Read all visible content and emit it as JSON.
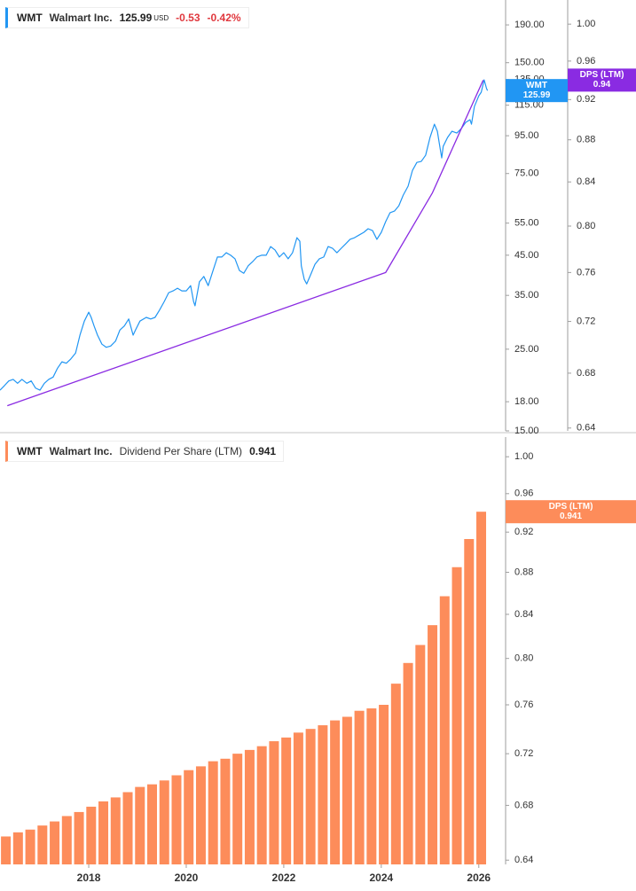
{
  "chart_data": [
    {
      "type": "line",
      "legend": {
        "symbol": "WMT",
        "name": "Walmart Inc.",
        "currency": "USD",
        "change": "-0.53",
        "change_percent": "-0.42%"
      },
      "x": [
        2016.18,
        2016.27,
        2016.36,
        2016.45,
        2016.54,
        2016.63,
        2016.73,
        2016.82,
        2016.91,
        2017.0,
        2017.09,
        2017.18,
        2017.27,
        2017.36,
        2017.45,
        2017.54,
        2017.63,
        2017.73,
        2017.82,
        2017.91,
        2018.0,
        2018.05,
        2018.11,
        2018.18,
        2018.27,
        2018.36,
        2018.45,
        2018.55,
        2018.64,
        2018.73,
        2018.82,
        2018.91,
        2018.96,
        2019.05,
        2019.18,
        2019.27,
        2019.36,
        2019.45,
        2019.55,
        2019.64,
        2019.73,
        2019.82,
        2019.91,
        2020.0,
        2020.09,
        2020.15,
        2020.18,
        2020.27,
        2020.36,
        2020.45,
        2020.55,
        2020.64,
        2020.73,
        2020.82,
        2020.91,
        2021.0,
        2021.09,
        2021.18,
        2021.27,
        2021.36,
        2021.45,
        2021.55,
        2021.64,
        2021.73,
        2021.82,
        2021.91,
        2022.0,
        2022.09,
        2022.18,
        2022.27,
        2022.33,
        2022.36,
        2022.42,
        2022.47,
        2022.55,
        2022.64,
        2022.73,
        2022.82,
        2022.91,
        2023.0,
        2023.09,
        2023.18,
        2023.27,
        2023.36,
        2023.45,
        2023.55,
        2023.64,
        2023.73,
        2023.82,
        2023.91,
        2024.0,
        2024.09,
        2024.18,
        2024.27,
        2024.36,
        2024.45,
        2024.55,
        2024.64,
        2024.73,
        2024.82,
        2024.91,
        2025.0,
        2025.09,
        2025.15,
        2025.2,
        2025.24,
        2025.27,
        2025.36,
        2025.45,
        2025.55,
        2025.64,
        2025.73,
        2025.82,
        2025.85,
        2025.91,
        2026.0,
        2026.05,
        2026.11,
        2026.16,
        2026.18
      ],
      "series": [
        {
          "name": "WMT",
          "color": "#2196f3",
          "values": [
            19.35,
            19.9,
            20.5,
            20.7,
            20.2,
            20.7,
            20.2,
            20.5,
            19.6,
            19.35,
            20.2,
            20.7,
            21.0,
            22.2,
            23.1,
            22.9,
            23.5,
            24.4,
            27.3,
            29.8,
            31.5,
            30.5,
            28.9,
            27.3,
            25.8,
            25.3,
            25.5,
            26.3,
            28.2,
            28.9,
            30.2,
            27.3,
            28.2,
            29.8,
            30.5,
            30.2,
            30.5,
            31.9,
            33.7,
            35.6,
            36.0,
            36.6,
            36.0,
            36.0,
            37.2,
            33.7,
            32.8,
            38.1,
            39.4,
            37.2,
            40.9,
            44.5,
            44.5,
            45.7,
            45.0,
            44.0,
            40.9,
            40.2,
            42.1,
            43.2,
            44.5,
            45.0,
            45.0,
            47.5,
            46.5,
            44.5,
            45.7,
            44.0,
            45.7,
            50.2,
            49.1,
            42.1,
            38.7,
            37.6,
            39.8,
            42.5,
            44.0,
            44.5,
            47.5,
            47.0,
            45.7,
            47.0,
            48.3,
            49.7,
            50.2,
            51.1,
            51.9,
            53.1,
            52.5,
            49.7,
            51.9,
            55.5,
            58.7,
            59.3,
            61.3,
            65.5,
            69.3,
            76.5,
            80.4,
            80.9,
            84.1,
            94.0,
            102.1,
            97.7,
            88.9,
            82.7,
            88.9,
            94.0,
            97.7,
            96.6,
            99.3,
            103.2,
            105.0,
            102.1,
            114.1,
            121.9,
            124.7,
            134.7,
            127.5,
            125.99
          ]
        },
        {
          "name": "DPS (LTM)",
          "color": "#8a2be2",
          "axis": "y2",
          "x": [
            2016.33,
            2024.09,
            2025.05,
            2026.09
          ],
          "values": [
            0.656,
            0.76,
            0.83,
            0.94
          ]
        }
      ],
      "xlim": [
        2016.18,
        2026.55
      ],
      "ylim": [
        15,
        222
      ],
      "ylog": true,
      "yticks": [
        {
          "value": 15,
          "label": "15.00"
        },
        {
          "value": 18,
          "label": "18.00"
        },
        {
          "value": 25,
          "label": "25.00"
        },
        {
          "value": 35,
          "label": "35.00"
        },
        {
          "value": 45,
          "label": "45.00"
        },
        {
          "value": 55,
          "label": "55.00"
        },
        {
          "value": 75,
          "label": "75.00"
        },
        {
          "value": 95,
          "label": "95.00"
        },
        {
          "value": 115,
          "label": "115.00"
        },
        {
          "value": 135,
          "label": "135.00"
        },
        {
          "value": 150,
          "label": "150.00"
        },
        {
          "value": 190,
          "label": "190.00"
        }
      ],
      "y2lim": [
        0.638,
        1.027
      ],
      "y2log": true,
      "y2ticks": [
        0.64,
        0.68,
        0.72,
        0.76,
        {
          "value": 0.8,
          "label": "0.80"
        },
        0.84,
        0.88,
        0.92,
        0.96,
        {
          "value": 1,
          "label": "1.00"
        }
      ],
      "grid": false
    },
    {
      "type": "bar",
      "legend": {
        "symbol": "WMT",
        "name": "Walmart Inc.",
        "metric": "Dividend Per Share (LTM)"
      },
      "x": [
        2016.3,
        2016.55,
        2016.8,
        2017.05,
        2017.3,
        2017.55,
        2017.8,
        2018.05,
        2018.3,
        2018.55,
        2018.8,
        2019.05,
        2019.3,
        2019.55,
        2019.8,
        2020.05,
        2020.3,
        2020.55,
        2020.8,
        2021.05,
        2021.3,
        2021.55,
        2021.8,
        2022.05,
        2022.3,
        2022.55,
        2022.8,
        2023.05,
        2023.3,
        2023.55,
        2023.8,
        2024.05,
        2024.3,
        2024.55,
        2024.8,
        2025.05,
        2025.3,
        2025.55,
        2025.8,
        2026.05
      ],
      "series": [
        {
          "name": "DPS (LTM)",
          "color": "#fd8c5a",
          "values": [
            0.657,
            0.66,
            0.662,
            0.665,
            0.668,
            0.672,
            0.675,
            0.679,
            0.683,
            0.686,
            0.69,
            0.694,
            0.696,
            0.699,
            0.703,
            0.707,
            0.71,
            0.714,
            0.716,
            0.72,
            0.723,
            0.726,
            0.73,
            0.733,
            0.737,
            0.74,
            0.743,
            0.747,
            0.75,
            0.755,
            0.757,
            0.76,
            0.778,
            0.796,
            0.812,
            0.83,
            0.857,
            0.885,
            0.913,
            0.941
          ]
        }
      ],
      "xlim": [
        2016.18,
        2026.55
      ],
      "xticks": [
        2018,
        2020,
        2022,
        2024,
        2026
      ],
      "ylim": [
        0.637,
        1.022
      ],
      "ylog": true,
      "yticks": [
        0.64,
        0.68,
        0.72,
        0.76,
        {
          "value": 0.8,
          "label": "0.80"
        },
        0.84,
        0.88,
        0.92,
        0.96,
        {
          "value": 1,
          "label": "1.00"
        }
      ],
      "grid": false
    }
  ]
}
